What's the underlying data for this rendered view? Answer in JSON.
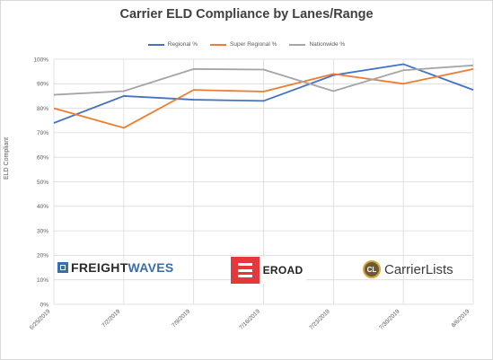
{
  "chart_data": {
    "type": "line",
    "title": "Carrier ELD Compliance by Lanes/Range",
    "ylabel": "ELD Compliant",
    "xlabel": "",
    "categories": [
      "6/25/2019",
      "7/2/2019",
      "7/9/2019",
      "7/16/2019",
      "7/23/2019",
      "7/30/2019",
      "8/6/2019"
    ],
    "ylim": [
      0,
      100
    ],
    "y_ticks": [
      "0%",
      "10%",
      "20%",
      "30%",
      "40%",
      "50%",
      "60%",
      "70%",
      "80%",
      "90%",
      "100%"
    ],
    "grid": true,
    "legend_position": "top",
    "series": [
      {
        "name": "Regional %",
        "color": "#4472c4",
        "values": [
          74,
          85,
          83.5,
          83,
          93.5,
          98,
          87.5
        ]
      },
      {
        "name": "Super Regional %",
        "color": "#ed7d31",
        "values": [
          80,
          72,
          87.5,
          86.8,
          94,
          90,
          96
        ]
      },
      {
        "name": "Nationwide %",
        "color": "#a5a5a5",
        "values": [
          85.5,
          87,
          96,
          95.8,
          87,
          95.5,
          97.5
        ]
      }
    ]
  },
  "logos": {
    "freightwaves": {
      "part1": "FREIGHT",
      "part2": "WAVES"
    },
    "eroad": "EROAD",
    "carrierlists": {
      "badge": "CL",
      "text": "CarrierLists"
    }
  }
}
